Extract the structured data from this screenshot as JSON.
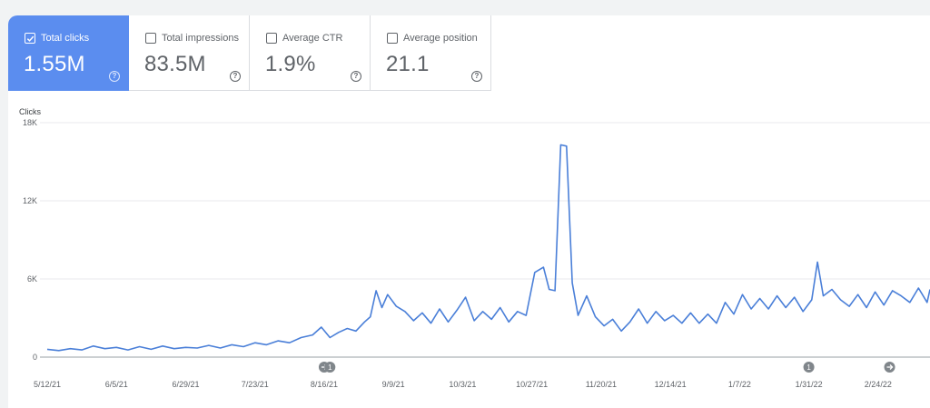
{
  "metrics": [
    {
      "label": "Total clicks",
      "value": "1.55M",
      "checked": true
    },
    {
      "label": "Total impressions",
      "value": "83.5M",
      "checked": false
    },
    {
      "label": "Average CTR",
      "value": "1.9%",
      "checked": false
    },
    {
      "label": "Average position",
      "value": "21.1",
      "checked": false
    }
  ],
  "colors": {
    "accent": "#5b8def",
    "line": "#4a7fd8"
  },
  "chart_data": {
    "type": "line",
    "ylabel": "Clicks",
    "ylim": [
      0,
      18000
    ],
    "yticks": [
      "18K",
      "12K",
      "6K",
      "0"
    ],
    "ytick_values": [
      18000,
      12000,
      6000,
      0
    ],
    "xlim": [
      "2021-05-12",
      "2022-03-14"
    ],
    "xticks": [
      "5/12/21",
      "6/5/21",
      "6/29/21",
      "7/23/21",
      "8/16/21",
      "9/9/21",
      "10/3/21",
      "10/27/21",
      "11/20/21",
      "12/14/21",
      "1/7/22",
      "1/31/22",
      "2/24/22"
    ],
    "xtick_dates": [
      "2021-05-12",
      "2021-06-05",
      "2021-06-29",
      "2021-07-23",
      "2021-08-16",
      "2021-09-09",
      "2021-10-03",
      "2021-10-27",
      "2021-11-20",
      "2021-12-14",
      "2022-01-07",
      "2022-01-31",
      "2022-02-24"
    ],
    "grid": true,
    "annotations": [
      {
        "date": "2021-08-16",
        "icon": "arrow-right-icon"
      },
      {
        "date": "2021-08-18",
        "text": "1"
      },
      {
        "date": "2022-01-31",
        "text": "1"
      },
      {
        "date": "2022-02-28",
        "icon": "arrow-right-icon"
      }
    ],
    "series": [
      {
        "points": [
          [
            "2021-05-12",
            600
          ],
          [
            "2021-05-16",
            500
          ],
          [
            "2021-05-20",
            650
          ],
          [
            "2021-05-24",
            550
          ],
          [
            "2021-05-28",
            850
          ],
          [
            "2021-06-01",
            650
          ],
          [
            "2021-06-05",
            750
          ],
          [
            "2021-06-09",
            550
          ],
          [
            "2021-06-13",
            800
          ],
          [
            "2021-06-17",
            600
          ],
          [
            "2021-06-21",
            850
          ],
          [
            "2021-06-25",
            650
          ],
          [
            "2021-06-29",
            750
          ],
          [
            "2021-07-03",
            700
          ],
          [
            "2021-07-07",
            900
          ],
          [
            "2021-07-11",
            700
          ],
          [
            "2021-07-15",
            950
          ],
          [
            "2021-07-19",
            800
          ],
          [
            "2021-07-23",
            1100
          ],
          [
            "2021-07-27",
            950
          ],
          [
            "2021-07-31",
            1250
          ],
          [
            "2021-08-04",
            1100
          ],
          [
            "2021-08-08",
            1500
          ],
          [
            "2021-08-12",
            1700
          ],
          [
            "2021-08-15",
            2300
          ],
          [
            "2021-08-18",
            1500
          ],
          [
            "2021-08-21",
            1900
          ],
          [
            "2021-08-24",
            2200
          ],
          [
            "2021-08-27",
            2000
          ],
          [
            "2021-08-30",
            2700
          ],
          [
            "2021-09-01",
            3100
          ],
          [
            "2021-09-03",
            5100
          ],
          [
            "2021-09-05",
            3800
          ],
          [
            "2021-09-07",
            4800
          ],
          [
            "2021-09-10",
            3900
          ],
          [
            "2021-09-13",
            3500
          ],
          [
            "2021-09-16",
            2800
          ],
          [
            "2021-09-19",
            3400
          ],
          [
            "2021-09-22",
            2600
          ],
          [
            "2021-09-25",
            3700
          ],
          [
            "2021-09-28",
            2700
          ],
          [
            "2021-10-01",
            3600
          ],
          [
            "2021-10-04",
            4600
          ],
          [
            "2021-10-07",
            2800
          ],
          [
            "2021-10-10",
            3500
          ],
          [
            "2021-10-13",
            2900
          ],
          [
            "2021-10-16",
            3800
          ],
          [
            "2021-10-19",
            2700
          ],
          [
            "2021-10-22",
            3500
          ],
          [
            "2021-10-25",
            3200
          ],
          [
            "2021-10-28",
            6500
          ],
          [
            "2021-10-31",
            6900
          ],
          [
            "2021-11-02",
            5200
          ],
          [
            "2021-11-04",
            5100
          ],
          [
            "2021-11-06",
            16300
          ],
          [
            "2021-11-08",
            16200
          ],
          [
            "2021-11-10",
            5700
          ],
          [
            "2021-11-12",
            3200
          ],
          [
            "2021-11-15",
            4700
          ],
          [
            "2021-11-18",
            3100
          ],
          [
            "2021-11-21",
            2400
          ],
          [
            "2021-11-24",
            2900
          ],
          [
            "2021-11-27",
            2000
          ],
          [
            "2021-11-30",
            2700
          ],
          [
            "2021-12-03",
            3700
          ],
          [
            "2021-12-06",
            2600
          ],
          [
            "2021-12-09",
            3500
          ],
          [
            "2021-12-12",
            2800
          ],
          [
            "2021-12-15",
            3200
          ],
          [
            "2021-12-18",
            2600
          ],
          [
            "2021-12-21",
            3400
          ],
          [
            "2021-12-24",
            2600
          ],
          [
            "2021-12-27",
            3300
          ],
          [
            "2021-12-30",
            2600
          ],
          [
            "2022-01-02",
            4200
          ],
          [
            "2022-01-05",
            3300
          ],
          [
            "2022-01-08",
            4800
          ],
          [
            "2022-01-11",
            3700
          ],
          [
            "2022-01-14",
            4500
          ],
          [
            "2022-01-17",
            3700
          ],
          [
            "2022-01-20",
            4700
          ],
          [
            "2022-01-23",
            3800
          ],
          [
            "2022-01-26",
            4600
          ],
          [
            "2022-01-29",
            3500
          ],
          [
            "2022-02-01",
            4400
          ],
          [
            "2022-02-03",
            7300
          ],
          [
            "2022-02-05",
            4700
          ],
          [
            "2022-02-08",
            5200
          ],
          [
            "2022-02-11",
            4400
          ],
          [
            "2022-02-14",
            3900
          ],
          [
            "2022-02-17",
            4800
          ],
          [
            "2022-02-20",
            3800
          ],
          [
            "2022-02-23",
            5000
          ],
          [
            "2022-02-26",
            4000
          ],
          [
            "2022-03-01",
            5100
          ],
          [
            "2022-03-04",
            4700
          ],
          [
            "2022-03-07",
            4200
          ],
          [
            "2022-03-10",
            5300
          ],
          [
            "2022-03-13",
            4200
          ],
          [
            "2022-03-14",
            5200
          ]
        ]
      }
    ]
  }
}
